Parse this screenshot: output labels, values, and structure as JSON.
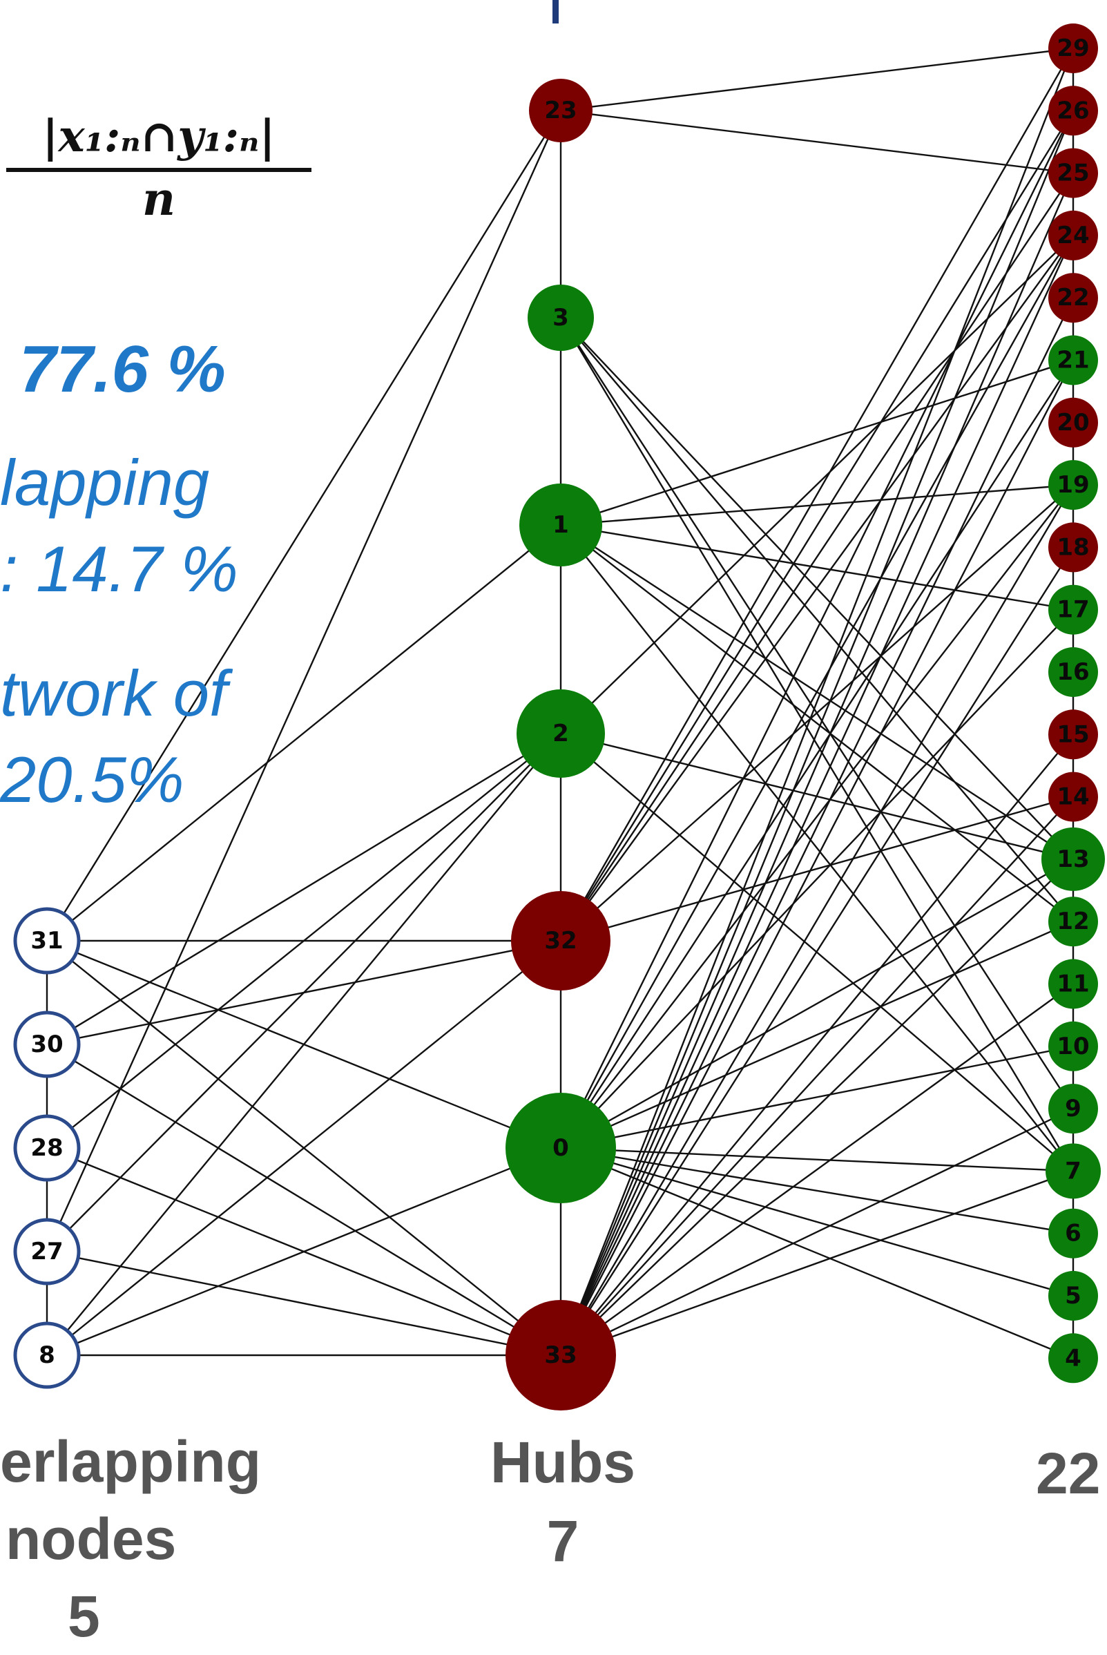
{
  "formula": {
    "numerator": "|x₁:ₙ∩y₁:ₙ|",
    "denominator": "n"
  },
  "stats": {
    "value1": "77.6 %",
    "text2_line1": "lapping",
    "text2_line2": ": 14.7 %",
    "text3_line1": "twork of",
    "text3_line2": "20.5%"
  },
  "columns": {
    "left": {
      "line1": "erlapping",
      "line2": "nodes",
      "line3": "5"
    },
    "middle": {
      "line1": "Hubs",
      "line2": "7"
    },
    "right": {
      "line1": "22"
    }
  },
  "colors": {
    "green": "#0a7d0a",
    "red": "#7b0000",
    "overlap_fill": "#ffffff",
    "overlap_stroke": "#2a4a8c",
    "accent_text": "#1f78c8",
    "label_gray": "#555555"
  },
  "nodes": {
    "overlap": [
      "31",
      "30",
      "28",
      "27",
      "8"
    ],
    "hubs": [
      {
        "id": "23",
        "color": "red"
      },
      {
        "id": "3",
        "color": "green"
      },
      {
        "id": "1",
        "color": "green"
      },
      {
        "id": "2",
        "color": "green"
      },
      {
        "id": "32",
        "color": "red"
      },
      {
        "id": "0",
        "color": "green"
      },
      {
        "id": "33",
        "color": "red"
      }
    ],
    "right": [
      {
        "id": "29",
        "color": "red"
      },
      {
        "id": "26",
        "color": "red"
      },
      {
        "id": "25",
        "color": "red"
      },
      {
        "id": "24",
        "color": "red"
      },
      {
        "id": "22",
        "color": "red"
      },
      {
        "id": "21",
        "color": "green"
      },
      {
        "id": "20",
        "color": "red"
      },
      {
        "id": "19",
        "color": "green"
      },
      {
        "id": "18",
        "color": "red"
      },
      {
        "id": "17",
        "color": "green"
      },
      {
        "id": "16",
        "color": "green"
      },
      {
        "id": "15",
        "color": "red"
      },
      {
        "id": "14",
        "color": "red"
      },
      {
        "id": "13",
        "color": "green"
      },
      {
        "id": "12",
        "color": "green"
      },
      {
        "id": "11",
        "color": "green"
      },
      {
        "id": "10",
        "color": "green"
      },
      {
        "id": "9",
        "color": "green"
      },
      {
        "id": "7",
        "color": "green"
      },
      {
        "id": "6",
        "color": "green"
      },
      {
        "id": "5",
        "color": "green"
      },
      {
        "id": "4",
        "color": "green"
      }
    ]
  },
  "edges": [
    [
      "23",
      "29"
    ],
    [
      "23",
      "25"
    ],
    [
      "23",
      "3"
    ],
    [
      "3",
      "1"
    ],
    [
      "1",
      "2"
    ],
    [
      "2",
      "32"
    ],
    [
      "32",
      "0"
    ],
    [
      "0",
      "33"
    ],
    [
      "31",
      "30"
    ],
    [
      "30",
      "28"
    ],
    [
      "28",
      "27"
    ],
    [
      "27",
      "8"
    ],
    [
      "29",
      "26"
    ],
    [
      "26",
      "25"
    ],
    [
      "25",
      "24"
    ],
    [
      "24",
      "22"
    ],
    [
      "22",
      "21"
    ],
    [
      "21",
      "20"
    ],
    [
      "20",
      "19"
    ],
    [
      "19",
      "18"
    ],
    [
      "18",
      "17"
    ],
    [
      "17",
      "16"
    ],
    [
      "16",
      "15"
    ],
    [
      "15",
      "14"
    ],
    [
      "14",
      "13"
    ],
    [
      "13",
      "12"
    ],
    [
      "12",
      "11"
    ],
    [
      "11",
      "10"
    ],
    [
      "10",
      "9"
    ],
    [
      "9",
      "7"
    ],
    [
      "7",
      "6"
    ],
    [
      "6",
      "5"
    ],
    [
      "5",
      "4"
    ],
    [
      "31",
      "23"
    ],
    [
      "31",
      "1"
    ],
    [
      "31",
      "32"
    ],
    [
      "31",
      "0"
    ],
    [
      "31",
      "33"
    ],
    [
      "30",
      "2"
    ],
    [
      "30",
      "32"
    ],
    [
      "30",
      "33"
    ],
    [
      "28",
      "2"
    ],
    [
      "28",
      "33"
    ],
    [
      "27",
      "2"
    ],
    [
      "27",
      "23"
    ],
    [
      "27",
      "33"
    ],
    [
      "8",
      "2"
    ],
    [
      "8",
      "32"
    ],
    [
      "8",
      "0"
    ],
    [
      "8",
      "33"
    ],
    [
      "3",
      "13"
    ],
    [
      "3",
      "12"
    ],
    [
      "3",
      "7"
    ],
    [
      "3",
      "9"
    ],
    [
      "1",
      "21"
    ],
    [
      "1",
      "19"
    ],
    [
      "1",
      "17"
    ],
    [
      "1",
      "13"
    ],
    [
      "1",
      "12"
    ],
    [
      "1",
      "7"
    ],
    [
      "2",
      "13"
    ],
    [
      "2",
      "7"
    ],
    [
      "2",
      "24"
    ],
    [
      "32",
      "29"
    ],
    [
      "32",
      "25"
    ],
    [
      "32",
      "24"
    ],
    [
      "32",
      "19"
    ],
    [
      "32",
      "14"
    ],
    [
      "32",
      "26"
    ],
    [
      "0",
      "21"
    ],
    [
      "0",
      "19"
    ],
    [
      "0",
      "13"
    ],
    [
      "0",
      "12"
    ],
    [
      "0",
      "10"
    ],
    [
      "0",
      "7"
    ],
    [
      "0",
      "6"
    ],
    [
      "0",
      "5"
    ],
    [
      "0",
      "4"
    ],
    [
      "0",
      "17"
    ],
    [
      "0",
      "26"
    ],
    [
      "0",
      "24"
    ],
    [
      "33",
      "29"
    ],
    [
      "33",
      "26"
    ],
    [
      "33",
      "25"
    ],
    [
      "33",
      "24"
    ],
    [
      "33",
      "21"
    ],
    [
      "33",
      "19"
    ],
    [
      "33",
      "15"
    ],
    [
      "33",
      "14"
    ],
    [
      "33",
      "13"
    ],
    [
      "33",
      "11"
    ],
    [
      "33",
      "9"
    ],
    [
      "33",
      "22"
    ],
    [
      "33",
      "18"
    ],
    [
      "33",
      "7"
    ]
  ]
}
